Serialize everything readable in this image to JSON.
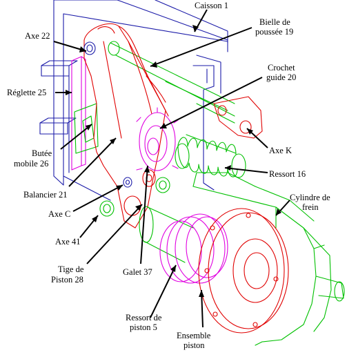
{
  "colors": {
    "frame": "#1a1aa8",
    "balancier": "#e00000",
    "bielle": "#00c000",
    "reglette": "#e000e0",
    "ressort": "#00c000",
    "cylindre": "#00c000",
    "piston": "#e00000",
    "ressort_piston": "#e000e0",
    "text": "#000000"
  },
  "labels": {
    "caisson": "Caisson 1",
    "bielle_1": "Bielle de",
    "bielle_2": "poussée 19",
    "axe22": "Axe 22",
    "crochet_1": "Crochet",
    "crochet_2": "guide 20",
    "reglette": "Réglette 25",
    "butee_1": "Butée",
    "butee_2": "mobile 26",
    "axek": "Axe K",
    "ressort16": "Ressort 16",
    "balancier": "Balancier 21",
    "cylindre_1": "Cylindre de",
    "cylindre_2": "frein",
    "axec": "Axe C",
    "axe41": "Axe 41",
    "tige_1": "Tige de",
    "tige_2": "Piston 28",
    "galet": "Galet 37",
    "ressortp_1": "Ressort de",
    "ressortp_2": "piston 5",
    "ensemble_1": "Ensemble",
    "ensemble_2": "piston"
  }
}
